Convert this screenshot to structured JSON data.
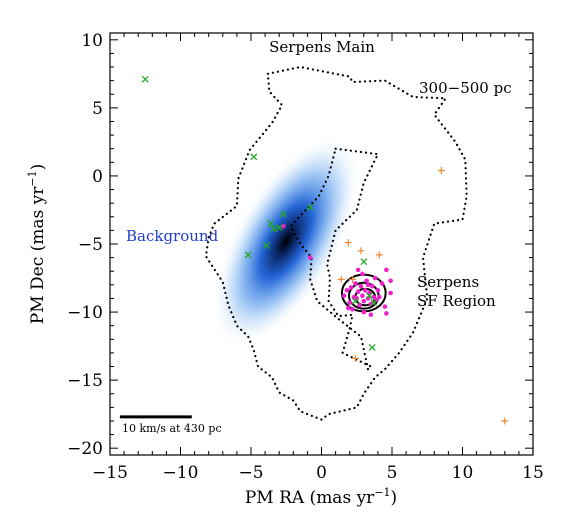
{
  "chart_data": {
    "type": "scatter",
    "title": "",
    "xlabel": "PM RA (mas yr",
    "xlabel_sup": "−1",
    "xlabel_end": ")",
    "ylabel": "PM Dec (mas yr",
    "ylabel_sup": "−1",
    "ylabel_end": ")",
    "xlim": [
      -15,
      15
    ],
    "ylim": [
      -20.5,
      10.5
    ],
    "xticks": [
      -15,
      -10,
      -5,
      0,
      5,
      10,
      15
    ],
    "xtick_labels": [
      "−15",
      "−10",
      "−5",
      "0",
      "5",
      "10",
      "15"
    ],
    "yticks": [
      -20,
      -15,
      -10,
      -5,
      0,
      5,
      10
    ],
    "ytick_labels": [
      "−20",
      "−15",
      "−10",
      "−5",
      "0",
      "5",
      "10"
    ],
    "grid": false,
    "colors": {
      "background_density": "#1a5fd6",
      "magenta_points": "#ee22cc",
      "green_crosses": "#22aa22",
      "orange_plus": "#ee8833",
      "contour": "#000000",
      "background_label": "#1e3ccf"
    },
    "annotations": {
      "serpens_main": "Serpens Main",
      "distance": "300−500 pc",
      "background": "Background",
      "sf_region_line1": "Serpens",
      "sf_region_line2": "SF Region",
      "scalebar": "10 km/s at 430 pc"
    },
    "background_density": {
      "center": [
        -2.5,
        -4.8
      ],
      "sigma_major": 4.2,
      "sigma_minor": 1.9,
      "angle_deg": 60
    },
    "sf_contours": [
      {
        "center": [
          3.0,
          -8.6
        ],
        "rx": 1.55,
        "ry": 1.35
      },
      {
        "center": [
          3.0,
          -8.8
        ],
        "rx": 1.05,
        "ry": 0.95
      },
      {
        "center": [
          3.1,
          -8.9
        ],
        "rx": 0.7,
        "ry": 0.6
      }
    ],
    "outline_300_500pc": [
      [
        -3.8,
        7.5
      ],
      [
        -1.5,
        8.0
      ],
      [
        0.5,
        7.6
      ],
      [
        2.0,
        7.3
      ],
      [
        2.2,
        6.9
      ],
      [
        4.5,
        7.0
      ],
      [
        6.5,
        5.8
      ],
      [
        8.8,
        5.7
      ],
      [
        8.0,
        4.5
      ],
      [
        9.5,
        2.5
      ],
      [
        10.2,
        1.2
      ],
      [
        10.3,
        -1.5
      ],
      [
        10.0,
        -3.2
      ],
      [
        8.0,
        -3.5
      ],
      [
        7.2,
        -6.0
      ],
      [
        7.5,
        -9.0
      ],
      [
        6.5,
        -11.5
      ],
      [
        5.5,
        -13.0
      ],
      [
        4.5,
        -14.2
      ],
      [
        3.8,
        -14.8
      ],
      [
        3.0,
        -16.0
      ],
      [
        2.5,
        -17.0
      ],
      [
        0.5,
        -17.5
      ],
      [
        0.0,
        -17.9
      ],
      [
        -1.5,
        -17.3
      ],
      [
        -2.0,
        -16.5
      ],
      [
        -3.0,
        -15.9
      ],
      [
        -3.5,
        -14.8
      ],
      [
        -4.5,
        -14.0
      ],
      [
        -4.8,
        -12.8
      ],
      [
        -5.2,
        -11.8
      ],
      [
        -6.0,
        -11.0
      ],
      [
        -6.6,
        -9.5
      ],
      [
        -7.0,
        -7.8
      ],
      [
        -8.2,
        -5.9
      ],
      [
        -8.0,
        -4.5
      ],
      [
        -7.6,
        -3.5
      ],
      [
        -6.0,
        -2.2
      ],
      [
        -5.9,
        -0.2
      ],
      [
        -5.1,
        1.9
      ],
      [
        -3.5,
        3.9
      ],
      [
        -2.8,
        5.2
      ],
      [
        -3.7,
        6.2
      ],
      [
        -3.8,
        7.5
      ]
    ],
    "outline_inner": [
      [
        1.0,
        2.0
      ],
      [
        4.0,
        1.6
      ],
      [
        3.0,
        -0.5
      ],
      [
        2.5,
        -2.5
      ],
      [
        1.0,
        -4.0
      ],
      [
        0.4,
        -6.5
      ],
      [
        0.6,
        -7.5
      ],
      [
        0.5,
        -9.2
      ],
      [
        1.2,
        -10.3
      ],
      [
        2.2,
        -10.2
      ],
      [
        2.0,
        -11.2
      ],
      [
        1.5,
        -13.0
      ],
      [
        3.5,
        -14.0
      ],
      [
        3.3,
        -14.2
      ],
      [
        2.8,
        -11.8
      ],
      [
        1.2,
        -10.5
      ],
      [
        -0.3,
        -9.2
      ],
      [
        -0.8,
        -7.6
      ],
      [
        -0.7,
        -6.0
      ],
      [
        -1.5,
        -5.0
      ],
      [
        -2.2,
        -3.7
      ],
      [
        -0.2,
        -1.5
      ],
      [
        0.5,
        0.0
      ],
      [
        1.0,
        2.0
      ]
    ],
    "series": [
      {
        "name": "magenta_points",
        "marker": "dot",
        "points": [
          [
            1.6,
            -8.8
          ],
          [
            1.8,
            -8.4
          ],
          [
            2.0,
            -9.3
          ],
          [
            2.1,
            -8.2
          ],
          [
            2.3,
            -8.9
          ],
          [
            2.4,
            -7.9
          ],
          [
            2.5,
            -9.0
          ],
          [
            2.6,
            -8.5
          ],
          [
            2.7,
            -9.5
          ],
          [
            2.8,
            -8.1
          ],
          [
            2.9,
            -8.8
          ],
          [
            3.0,
            -9.2
          ],
          [
            3.1,
            -8.4
          ],
          [
            3.2,
            -7.7
          ],
          [
            3.3,
            -9.0
          ],
          [
            3.4,
            -8.6
          ],
          [
            3.5,
            -9.4
          ],
          [
            3.6,
            -8.1
          ],
          [
            3.7,
            -8.9
          ],
          [
            3.8,
            -7.5
          ],
          [
            3.9,
            -9.1
          ],
          [
            4.0,
            -8.4
          ],
          [
            4.1,
            -8.9
          ],
          [
            4.3,
            -7.9
          ],
          [
            4.5,
            -9.6
          ],
          [
            2.2,
            -9.8
          ],
          [
            3.0,
            -10.0
          ],
          [
            3.5,
            -10.2
          ],
          [
            2.9,
            -7.2
          ],
          [
            4.6,
            -6.9
          ],
          [
            4.9,
            -7.7
          ],
          [
            4.6,
            -10.1
          ],
          [
            4.9,
            -8.6
          ],
          [
            2.6,
            -6.9
          ],
          [
            -0.8,
            -6.0
          ],
          [
            -2.7,
            -3.7
          ],
          [
            1.9,
            -9.7
          ],
          [
            3.3,
            -8.0
          ]
        ]
      },
      {
        "name": "green_crosses",
        "marker": "x",
        "points": [
          [
            -12.5,
            7.1
          ],
          [
            -4.8,
            1.4
          ],
          [
            -5.2,
            -5.8
          ],
          [
            -3.6,
            -3.5
          ],
          [
            -3.4,
            -3.9
          ],
          [
            -3.0,
            -3.8
          ],
          [
            -3.9,
            -5.1
          ],
          [
            -2.7,
            -2.8
          ],
          [
            -0.8,
            -2.3
          ],
          [
            3.0,
            -6.3
          ],
          [
            3.6,
            -12.6
          ],
          [
            2.4,
            -9.2
          ],
          [
            3.4,
            -8.8
          ],
          [
            3.7,
            -9.3
          ]
        ]
      },
      {
        "name": "orange_plus",
        "marker": "+",
        "points": [
          [
            8.5,
            0.4
          ],
          [
            1.9,
            -4.9
          ],
          [
            1.4,
            -7.6
          ],
          [
            2.2,
            -7.6
          ],
          [
            4.1,
            -5.8
          ],
          [
            2.4,
            -13.4
          ],
          [
            13.0,
            -18.0
          ],
          [
            2.8,
            -5.5
          ]
        ]
      }
    ],
    "scalebar": {
      "x_start": -14.3,
      "x_end": -9.2,
      "y": -17.7
    }
  }
}
